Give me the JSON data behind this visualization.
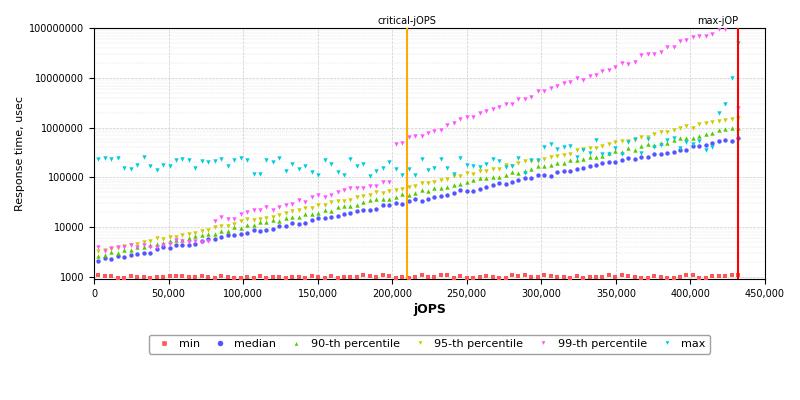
{
  "xlabel": "jOPS",
  "ylabel": "Response time, usec",
  "critical_jops": 210000,
  "max_jops": 432000,
  "xlim": [
    0,
    450000
  ],
  "ylim_log": [
    900,
    100000000
  ],
  "bg": "#ffffff",
  "grid_color": "#cccccc",
  "colors": {
    "min": "#ff5555",
    "median": "#5555ff",
    "p90": "#55cc00",
    "p95": "#cccc00",
    "p99": "#ff55ff",
    "max": "#00ccdd"
  },
  "n_points": 100,
  "x_start": 3000,
  "x_end": 432000
}
